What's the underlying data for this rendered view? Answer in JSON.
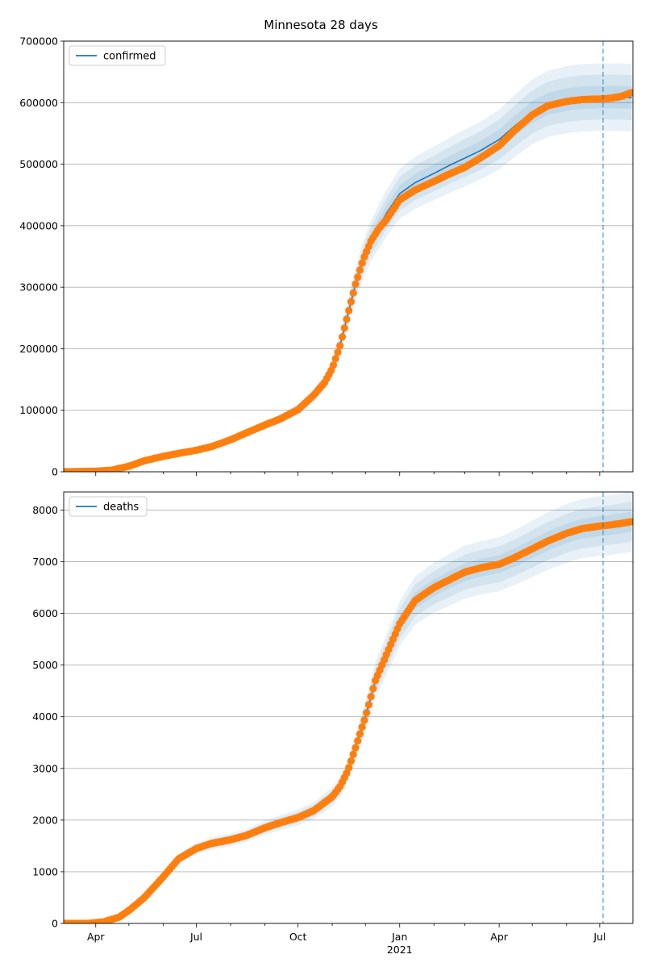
{
  "figure": {
    "title": "Minnesota 28 days"
  },
  "colors": {
    "model": "#1f77b4",
    "observed": "#ff7f0e",
    "band": "#1f77b4",
    "grid": "#b0b0b0",
    "vline": "#1f77b4"
  },
  "chart_data": [
    {
      "type": "line",
      "title": "Minnesota 28 days",
      "legend": {
        "label": "confirmed",
        "placement": "top-left"
      },
      "grid": "y",
      "xlim": [
        "2020-03-03",
        "2021-07-31"
      ],
      "ylim": [
        0,
        700000
      ],
      "yticks": [
        0,
        100000,
        200000,
        300000,
        400000,
        500000,
        600000,
        700000
      ],
      "ytick_labels": [
        "0",
        "100000",
        "200000",
        "300000",
        "400000",
        "500000",
        "600000",
        "700000"
      ],
      "forecast_start": "2021-07-04",
      "band_halfwidths": [
        0.09,
        0.06,
        0.03
      ],
      "observed": {
        "x": [
          "2020-03-03",
          "2020-04-01",
          "2020-04-15",
          "2020-05-01",
          "2020-05-15",
          "2020-06-01",
          "2020-06-15",
          "2020-07-01",
          "2020-07-15",
          "2020-08-01",
          "2020-08-15",
          "2020-09-01",
          "2020-09-15",
          "2020-10-01",
          "2020-10-15",
          "2020-10-25",
          "2020-11-01",
          "2020-11-08",
          "2020-11-15",
          "2020-11-22",
          "2020-11-29",
          "2020-12-06",
          "2020-12-13",
          "2020-12-20",
          "2021-01-01",
          "2021-01-15",
          "2021-02-01",
          "2021-02-15",
          "2021-03-01",
          "2021-03-15",
          "2021-04-01",
          "2021-04-15",
          "2021-05-01",
          "2021-05-15",
          "2021-06-01",
          "2021-06-15",
          "2021-07-01",
          "2021-07-10",
          "2021-07-20",
          "2021-07-31"
        ],
        "y": [
          0,
          1000,
          2500,
          9000,
          18000,
          25000,
          30000,
          35000,
          41000,
          52000,
          63000,
          76000,
          86000,
          101000,
          124000,
          145000,
          168000,
          205000,
          255000,
          305000,
          345000,
          375000,
          395000,
          410000,
          442000,
          458000,
          472000,
          484000,
          495000,
          510000,
          530000,
          555000,
          580000,
          595000,
          602000,
          605000,
          606000,
          607000,
          610000,
          617000
        ]
      },
      "model": {
        "x": [
          "2020-03-03",
          "2020-04-01",
          "2020-04-15",
          "2020-05-01",
          "2020-05-15",
          "2020-06-01",
          "2020-06-15",
          "2020-07-01",
          "2020-07-15",
          "2020-08-01",
          "2020-08-15",
          "2020-09-01",
          "2020-09-15",
          "2020-10-01",
          "2020-10-15",
          "2020-10-25",
          "2020-11-01",
          "2020-11-08",
          "2020-11-15",
          "2020-11-22",
          "2020-11-29",
          "2020-12-06",
          "2020-12-13",
          "2020-12-20",
          "2021-01-01",
          "2021-01-15",
          "2021-02-01",
          "2021-02-15",
          "2021-03-01",
          "2021-03-15",
          "2021-04-01",
          "2021-04-15",
          "2021-05-01",
          "2021-05-15",
          "2021-06-01",
          "2021-06-15",
          "2021-07-01",
          "2021-07-10",
          "2021-07-20",
          "2021-07-31"
        ],
        "y": [
          0,
          1000,
          2500,
          9000,
          18000,
          25000,
          30000,
          35000,
          41000,
          52000,
          63000,
          76000,
          86000,
          101000,
          124000,
          145000,
          168000,
          205000,
          255000,
          305000,
          345000,
          375000,
          398000,
          420000,
          452000,
          470000,
          485000,
          498000,
          510000,
          522000,
          540000,
          562000,
          585000,
          598000,
          605000,
          608000,
          609000,
          609000,
          609000,
          608000
        ]
      }
    },
    {
      "type": "line",
      "legend": {
        "label": "deaths",
        "placement": "top-left"
      },
      "grid": "y",
      "xlim": [
        "2020-03-03",
        "2021-07-31"
      ],
      "ylim": [
        0,
        8350
      ],
      "yticks": [
        0,
        1000,
        2000,
        3000,
        4000,
        5000,
        6000,
        7000,
        8000
      ],
      "ytick_labels": [
        "0",
        "1000",
        "2000",
        "3000",
        "4000",
        "5000",
        "6000",
        "7000",
        "8000"
      ],
      "xticks": [
        "2020-04-01",
        "2020-07-01",
        "2020-10-01",
        "2021-01-01",
        "2021-04-01",
        "2021-07-01"
      ],
      "xtick_labels": [
        "Apr",
        "Jul",
        "Oct",
        "Jan",
        "Apr",
        "Jul"
      ],
      "xtick_sublabel": "2021",
      "forecast_start": "2021-07-04",
      "band_halfwidths": [
        0.075,
        0.05,
        0.025
      ],
      "observed": {
        "x": [
          "2020-03-03",
          "2020-03-25",
          "2020-04-08",
          "2020-04-22",
          "2020-05-01",
          "2020-05-15",
          "2020-06-01",
          "2020-06-15",
          "2020-07-01",
          "2020-07-15",
          "2020-08-01",
          "2020-08-15",
          "2020-09-01",
          "2020-09-15",
          "2020-10-01",
          "2020-10-15",
          "2020-11-01",
          "2020-11-08",
          "2020-11-15",
          "2020-11-22",
          "2020-12-01",
          "2020-12-10",
          "2020-12-20",
          "2021-01-01",
          "2021-01-15",
          "2021-02-01",
          "2021-02-15",
          "2021-03-01",
          "2021-03-15",
          "2021-04-01",
          "2021-04-15",
          "2021-05-01",
          "2021-05-15",
          "2021-06-01",
          "2021-06-15",
          "2021-07-01",
          "2021-07-10",
          "2021-07-20",
          "2021-07-31"
        ],
        "y": [
          0,
          0,
          30,
          120,
          250,
          500,
          900,
          1250,
          1450,
          1550,
          1620,
          1700,
          1850,
          1950,
          2050,
          2180,
          2450,
          2650,
          2950,
          3400,
          4000,
          4700,
          5200,
          5800,
          6250,
          6500,
          6650,
          6800,
          6880,
          6950,
          7080,
          7250,
          7400,
          7550,
          7640,
          7690,
          7710,
          7740,
          7780
        ]
      },
      "model": {
        "x": [
          "2020-03-03",
          "2020-03-25",
          "2020-04-08",
          "2020-04-22",
          "2020-05-01",
          "2020-05-15",
          "2020-06-01",
          "2020-06-15",
          "2020-07-01",
          "2020-07-15",
          "2020-08-01",
          "2020-08-15",
          "2020-09-01",
          "2020-09-15",
          "2020-10-01",
          "2020-10-15",
          "2020-11-01",
          "2020-11-08",
          "2020-11-15",
          "2020-11-22",
          "2020-12-01",
          "2020-12-10",
          "2020-12-20",
          "2021-01-01",
          "2021-01-15",
          "2021-02-01",
          "2021-02-15",
          "2021-03-01",
          "2021-03-15",
          "2021-04-01",
          "2021-04-15",
          "2021-05-01",
          "2021-05-15",
          "2021-06-01",
          "2021-06-15",
          "2021-07-01",
          "2021-07-10",
          "2021-07-20",
          "2021-07-31"
        ],
        "y": [
          0,
          0,
          30,
          120,
          250,
          500,
          900,
          1250,
          1450,
          1550,
          1620,
          1700,
          1850,
          1950,
          2050,
          2180,
          2450,
          2650,
          2950,
          3400,
          4000,
          4700,
          5200,
          5800,
          6250,
          6500,
          6650,
          6800,
          6880,
          6950,
          7080,
          7250,
          7400,
          7550,
          7640,
          7690,
          7710,
          7740,
          7780
        ]
      }
    }
  ]
}
